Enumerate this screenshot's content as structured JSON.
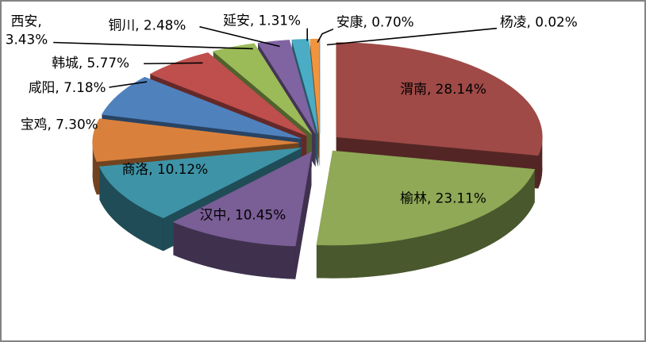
{
  "chart_data": {
    "type": "pie",
    "style": "3d-exploded",
    "title": "",
    "legend": "none",
    "unit": "%",
    "label_format": "{name}, {value}%",
    "background": "#FFFFFF",
    "border_color": "#848484",
    "leader_line_color": "#000000",
    "label_color": "#000000",
    "slices": [
      {
        "name": "渭南",
        "value": 28.14,
        "color": "#9F4A47"
      },
      {
        "name": "榆林",
        "value": 23.11,
        "color": "#8FA956"
      },
      {
        "name": "汉中",
        "value": 10.45,
        "color": "#7A5E96"
      },
      {
        "name": "商洛",
        "value": 10.12,
        "color": "#3E93A7"
      },
      {
        "name": "宝鸡",
        "value": 7.3,
        "color": "#D9813C"
      },
      {
        "name": "咸阳",
        "value": 7.18,
        "color": "#4F81BD"
      },
      {
        "name": "韩城",
        "value": 5.77,
        "color": "#BE4F4C"
      },
      {
        "name": "西安",
        "value": 3.43,
        "color": "#9BBB59"
      },
      {
        "name": "铜川",
        "value": 2.48,
        "color": "#8064A2"
      },
      {
        "name": "延安",
        "value": 1.31,
        "color": "#4BACC6"
      },
      {
        "name": "安康",
        "value": 0.7,
        "color": "#F0953F"
      },
      {
        "name": "杨凌",
        "value": 0.02,
        "color": "#4F81BD"
      }
    ]
  }
}
